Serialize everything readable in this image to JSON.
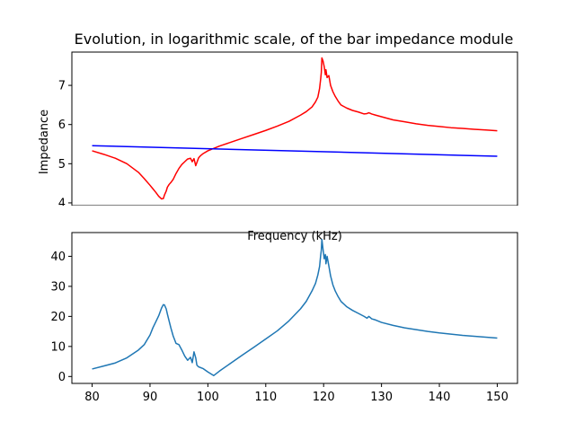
{
  "chart_data": [
    {
      "type": "line",
      "title": "Evolution, in logarithmic scale, of the bar impedance module",
      "xlabel": "Frequency (kHz)",
      "ylabel": "Impedance",
      "xlim": [
        76.5,
        153.5
      ],
      "ylim": [
        3.93,
        7.85
      ],
      "xticks": [
        "80",
        "90",
        "100",
        "110",
        "120",
        "130",
        "140",
        "150"
      ],
      "yticks": [
        "4",
        "5",
        "6",
        "7"
      ],
      "grid": false,
      "series": [
        {
          "color": "#ff0000",
          "x": [
            80,
            82,
            84,
            86,
            88,
            89,
            90,
            90.5,
            91,
            91.5,
            92,
            92.3,
            92.5,
            92.8,
            93,
            93.3,
            93.6,
            94,
            94.5,
            95,
            95.5,
            96,
            96.5,
            97,
            97.3,
            97.6,
            97.9,
            98.1,
            98.4,
            98.7,
            99.2,
            100,
            101,
            102,
            104,
            106,
            108,
            110,
            112,
            114,
            116,
            117,
            118,
            118.6,
            119,
            119.3,
            119.5,
            119.6,
            119.7,
            119.9,
            120.1,
            120.3,
            120.4,
            120.6,
            120.9,
            121.2,
            121.6,
            122,
            122.5,
            123,
            124,
            125,
            126,
            127,
            127.5,
            127.8,
            128,
            128.3,
            129,
            130,
            132,
            134,
            136,
            138,
            140,
            142,
            144,
            146,
            148,
            150
          ],
          "values": [
            5.33,
            5.24,
            5.14,
            5.0,
            4.78,
            4.62,
            4.45,
            4.36,
            4.27,
            4.17,
            4.1,
            4.11,
            4.2,
            4.3,
            4.4,
            4.47,
            4.52,
            4.6,
            4.75,
            4.88,
            4.98,
            5.05,
            5.12,
            5.14,
            5.05,
            5.13,
            4.95,
            5.03,
            5.15,
            5.2,
            5.26,
            5.33,
            5.39,
            5.45,
            5.55,
            5.65,
            5.75,
            5.85,
            5.96,
            6.08,
            6.24,
            6.33,
            6.45,
            6.58,
            6.7,
            6.92,
            7.18,
            7.33,
            7.7,
            7.62,
            7.48,
            7.27,
            7.4,
            7.2,
            7.25,
            7.0,
            6.84,
            6.72,
            6.6,
            6.5,
            6.42,
            6.36,
            6.32,
            6.27,
            6.28,
            6.3,
            6.29,
            6.27,
            6.24,
            6.2,
            6.12,
            6.07,
            6.02,
            5.98,
            5.95,
            5.92,
            5.9,
            5.88,
            5.86,
            5.84
          ]
        },
        {
          "color": "#0000ff",
          "x": [
            80,
            150
          ],
          "values": [
            5.46,
            5.19
          ]
        }
      ]
    },
    {
      "type": "line",
      "xlim": [
        76.5,
        153.5
      ],
      "ylim": [
        -2.3,
        47.9
      ],
      "xticks": [
        "80",
        "90",
        "100",
        "110",
        "120",
        "130",
        "140",
        "150"
      ],
      "yticks": [
        "0",
        "10",
        "20",
        "30",
        "40"
      ],
      "grid": false,
      "series": [
        {
          "color": "#1f77b4",
          "x": [
            80,
            82,
            84,
            86,
            88,
            89,
            90,
            90.5,
            91,
            91.5,
            92,
            92.3,
            92.5,
            92.8,
            93,
            93.3,
            93.6,
            94,
            94.5,
            95,
            95.5,
            96,
            96.5,
            97,
            97.3,
            97.6,
            97.9,
            98.1,
            98.4,
            98.7,
            99.2,
            100,
            101,
            102,
            104,
            106,
            108,
            110,
            112,
            114,
            116,
            117,
            118,
            118.6,
            119,
            119.3,
            119.5,
            119.6,
            119.7,
            119.9,
            120.1,
            120.3,
            120.4,
            120.6,
            120.9,
            121.2,
            121.6,
            122,
            122.5,
            123,
            124,
            125,
            126,
            127,
            127.5,
            127.8,
            128,
            128.3,
            129,
            130,
            132,
            134,
            136,
            138,
            140,
            142,
            144,
            146,
            148,
            150
          ],
          "values": [
            2.5,
            3.5,
            4.5,
            6.2,
            8.8,
            10.6,
            13.8,
            16.2,
            18.2,
            20.2,
            22.8,
            23.9,
            23.8,
            22.5,
            20.8,
            18.5,
            16.2,
            13.5,
            11.0,
            10.6,
            8.8,
            6.8,
            5.4,
            6.4,
            4.6,
            8.2,
            6.2,
            3.8,
            3.2,
            3.0,
            2.6,
            1.5,
            0.3,
            1.8,
            4.5,
            7.2,
            9.8,
            12.5,
            15.2,
            18.5,
            22.5,
            25.0,
            28.5,
            31.0,
            33.8,
            36.6,
            40.5,
            42.0,
            45.6,
            42.3,
            39.2,
            40.6,
            37.5,
            40.0,
            36.8,
            33.5,
            30.5,
            28.5,
            26.6,
            25.0,
            23.2,
            22.0,
            21.0,
            20.0,
            19.4,
            20.0,
            19.7,
            19.2,
            18.8,
            18.0,
            17.0,
            16.2,
            15.6,
            15.0,
            14.5,
            14.1,
            13.7,
            13.4,
            13.1,
            12.8
          ]
        }
      ]
    }
  ]
}
